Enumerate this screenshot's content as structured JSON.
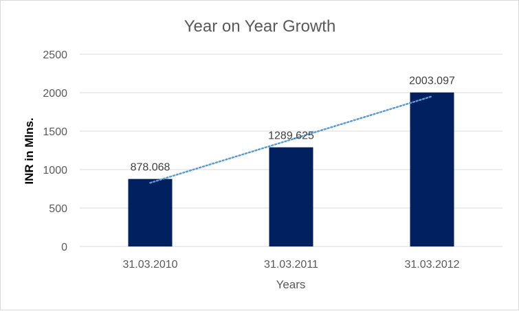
{
  "chart_data": {
    "type": "bar",
    "title": "Year on Year Growth",
    "xlabel": "Years",
    "ylabel": "INR in Mlns.",
    "categories": [
      "31.03.2010",
      "31.03.2011",
      "31.03.2012"
    ],
    "values": [
      878.068,
      1289.625,
      2003.097
    ],
    "data_labels": [
      "878.068",
      "1289.625",
      "2003.097"
    ],
    "ylim": [
      0,
      2500
    ],
    "yticks": [
      0,
      500,
      1000,
      1500,
      2000,
      2500
    ],
    "grid": true,
    "legend": "none",
    "trendline": "linear",
    "colors": {
      "bar": "#002060",
      "trendline": "#5b9bd5",
      "grid": "#d9d9d9"
    }
  }
}
